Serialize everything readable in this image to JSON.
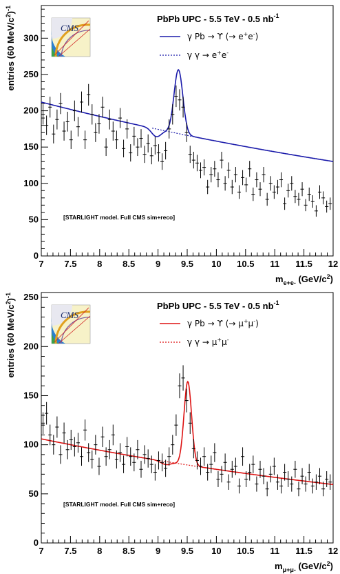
{
  "chart_data": [
    {
      "type": "scatter",
      "title": "PbPb UPC - 5.5 TeV - 0.5 nb",
      "title_sup": "-1",
      "note": "[STARLIGHT model. Full CMS sim+reco]",
      "ylabel": "entries (60 MeV/c",
      "ylabel_sup": "2",
      "ylabel_sup2": ")",
      "ylabel_sup3": "-1",
      "xlabel": "m",
      "xlabel_sub": "e+e-",
      "xlabel_unit": " (GeV/c",
      "xlabel_unit_sup": "2",
      "xlabel_unit_close": ")",
      "xlim": [
        7,
        12
      ],
      "ylim": [
        0,
        345
      ],
      "xticks": [
        "7",
        "7.5",
        "8",
        "8.5",
        "9",
        "9.5",
        "10",
        "10.5",
        "11",
        "11.5",
        "12"
      ],
      "yticks": [
        "0",
        "50",
        "100",
        "150",
        "200",
        "250",
        "300"
      ],
      "legend": {
        "position": "top-right",
        "signal": {
          "a": "γ Pb → ϒ (→ e",
          "b": "+",
          "c": "e",
          "d": "-",
          "e": ")"
        },
        "background": {
          "a": "γ γ → e",
          "b": "+",
          "c": "e",
          "d": "-"
        }
      },
      "colors": {
        "curve": "#1a1aaa",
        "points": "#000000"
      },
      "background_model": {
        "a": 212,
        "b": 0.0976
      },
      "signal_model": {
        "amp": 88,
        "mean": 9.35,
        "sigma": 0.075
      },
      "series": [
        {
          "x": [
            7.03,
            7.09,
            7.15,
            7.21,
            7.27,
            7.33,
            7.39,
            7.45,
            7.51,
            7.57,
            7.63,
            7.69,
            7.75,
            7.81,
            7.87,
            7.93,
            7.99,
            8.05,
            8.11,
            8.17,
            8.23,
            8.29,
            8.35,
            8.41,
            8.47,
            8.53,
            8.59,
            8.65,
            8.71,
            8.77,
            8.83,
            8.89,
            8.95,
            9.01,
            9.07,
            9.13,
            9.19,
            9.25,
            9.31,
            9.37,
            9.43,
            9.49,
            9.55,
            9.61,
            9.67,
            9.73,
            9.79,
            9.85,
            9.91,
            9.97,
            10.03,
            10.09,
            10.15,
            10.21,
            10.27,
            10.33,
            10.39,
            10.45,
            10.51,
            10.57,
            10.63,
            10.69,
            10.75,
            10.81,
            10.87,
            10.93,
            10.99,
            11.05,
            11.11,
            11.17,
            11.23,
            11.29,
            11.35,
            11.41,
            11.47,
            11.53,
            11.59,
            11.65,
            11.71,
            11.77,
            11.83,
            11.89,
            11.95
          ],
          "y": [
            195,
            180,
            205,
            168,
            188,
            210,
            172,
            185,
            160,
            200,
            178,
            212,
            160,
            222,
            195,
            170,
            182,
            205,
            150,
            188,
            172,
            160,
            190,
            148,
            175,
            142,
            165,
            150,
            162,
            140,
            155,
            138,
            152,
            142,
            130,
            145,
            175,
            195,
            220,
            215,
            205,
            170,
            140,
            132,
            128,
            118,
            122,
            95,
            112,
            120,
            105,
            132,
            100,
            118,
            95,
            112,
            88,
            108,
            98,
            120,
            85,
            105,
            92,
            112,
            78,
            100,
            88,
            95,
            105,
            72,
            90,
            100,
            82,
            78,
            92,
            70,
            85,
            75,
            62,
            88,
            80,
            68,
            72
          ]
        }
      ]
    },
    {
      "type": "scatter",
      "title": "PbPb UPC - 5.5 TeV - 0.5 nb",
      "title_sup": "-1",
      "note": "[STARLIGHT model. Full CMS sim+reco]",
      "ylabel": "entries (60 MeV/c",
      "ylabel_sup": "2",
      "ylabel_sup2": ")",
      "ylabel_sup3": "-1",
      "xlabel": "m",
      "xlabel_sub": "μ+μ-",
      "xlabel_unit": " (GeV/c",
      "xlabel_unit_sup": "2",
      "xlabel_unit_close": ")",
      "xlim": [
        7,
        12
      ],
      "ylim": [
        0,
        255
      ],
      "xticks": [
        "7",
        "7.5",
        "8",
        "8.5",
        "9",
        "9.5",
        "10",
        "10.5",
        "11",
        "11.5",
        "12"
      ],
      "yticks": [
        "0",
        "50",
        "100",
        "150",
        "200",
        "250"
      ],
      "legend": {
        "position": "top-right",
        "signal": {
          "a": "γ Pb → ϒ (→ μ",
          "b": "+",
          "c": "μ",
          "d": "-",
          "e": ")"
        },
        "background": {
          "a": "γ γ → μ",
          "b": "+",
          "c": "μ",
          "d": "-"
        }
      },
      "colors": {
        "curve": "#dd1111",
        "points": "#000000"
      },
      "background_model": {
        "a": 106,
        "b": 0.1154
      },
      "signal_model": {
        "amp": 85,
        "mean": 9.51,
        "sigma": 0.065
      },
      "series": [
        {
          "x": [
            7.03,
            7.09,
            7.15,
            7.21,
            7.27,
            7.33,
            7.39,
            7.45,
            7.51,
            7.57,
            7.63,
            7.69,
            7.75,
            7.81,
            7.87,
            7.93,
            7.99,
            8.05,
            8.11,
            8.17,
            8.23,
            8.29,
            8.35,
            8.41,
            8.47,
            8.53,
            8.59,
            8.65,
            8.71,
            8.77,
            8.83,
            8.89,
            8.95,
            9.01,
            9.07,
            9.13,
            9.19,
            9.25,
            9.31,
            9.37,
            9.43,
            9.49,
            9.55,
            9.61,
            9.67,
            9.73,
            9.79,
            9.85,
            9.91,
            9.97,
            10.03,
            10.09,
            10.15,
            10.21,
            10.27,
            10.33,
            10.39,
            10.45,
            10.51,
            10.57,
            10.63,
            10.69,
            10.75,
            10.81,
            10.87,
            10.93,
            10.99,
            11.05,
            11.11,
            11.17,
            11.23,
            11.29,
            11.35,
            11.41,
            11.47,
            11.53,
            11.59,
            11.65,
            11.71,
            11.77,
            11.83,
            11.89,
            11.95
          ],
          "y": [
            122,
            132,
            110,
            100,
            118,
            90,
            112,
            95,
            105,
            98,
            102,
            88,
            115,
            92,
            85,
            100,
            78,
            108,
            88,
            95,
            110,
            85,
            92,
            80,
            98,
            88,
            82,
            95,
            75,
            90,
            86,
            80,
            72,
            84,
            82,
            76,
            88,
            100,
            120,
            160,
            168,
            145,
            122,
            96,
            84,
            78,
            88,
            72,
            80,
            92,
            65,
            70,
            82,
            62,
            75,
            78,
            58,
            88,
            65,
            72,
            80,
            60,
            75,
            68,
            55,
            70,
            78,
            62,
            58,
            72,
            65,
            60,
            75,
            55,
            68,
            60,
            72,
            58,
            62,
            68,
            55,
            65,
            62
          ]
        }
      ]
    }
  ]
}
